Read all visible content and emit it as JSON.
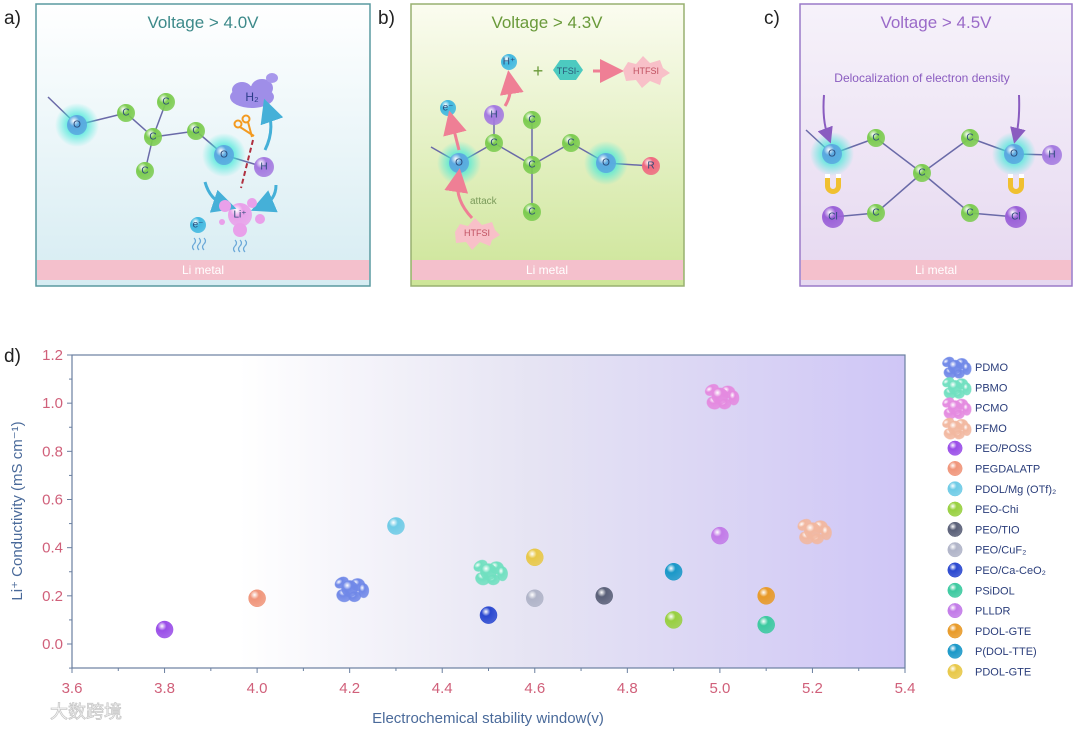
{
  "panels": [
    {
      "label": "a)",
      "title": "Voltage > 4.0V",
      "substrate": "Li metal",
      "color": "#3d8a8a",
      "atoms": [
        {
          "t": "O",
          "k": "O"
        },
        {
          "t": "C",
          "k": "C"
        },
        {
          "t": "C",
          "k": "C"
        },
        {
          "t": "C",
          "k": "C"
        },
        {
          "t": "C",
          "k": "C"
        },
        {
          "t": "C",
          "k": "C"
        },
        {
          "t": "O",
          "k": "O"
        },
        {
          "t": "H",
          "k": "H"
        },
        {
          "t": "Li⁺",
          "k": "Li"
        },
        {
          "t": "e⁻",
          "k": "e"
        }
      ],
      "extras": {
        "gas": "H₂"
      }
    },
    {
      "label": "b)",
      "title": "Voltage > 4.3V",
      "substrate": "Li metal",
      "color": "#6a9a3a",
      "atoms": [
        {
          "t": "O",
          "k": "O"
        },
        {
          "t": "C",
          "k": "C"
        },
        {
          "t": "H",
          "k": "H"
        },
        {
          "t": "C",
          "k": "C"
        },
        {
          "t": "C",
          "k": "C"
        },
        {
          "t": "C",
          "k": "C"
        },
        {
          "t": "C",
          "k": "C"
        },
        {
          "t": "O",
          "k": "O"
        },
        {
          "t": "R",
          "k": "R"
        },
        {
          "t": "e⁻",
          "k": "e"
        },
        {
          "t": "H⁺",
          "k": "e"
        }
      ],
      "extras": {
        "plus": "+",
        "anion": "TFSI-",
        "product": "HTFSI",
        "attack": "attack",
        "attacker": "HTFSI"
      }
    },
    {
      "label": "c)",
      "title": "Voltage > 4.5V",
      "substrate": "Li metal",
      "color": "#9a6ac8",
      "atoms": [
        {
          "t": "O",
          "k": "O"
        },
        {
          "t": "C",
          "k": "C"
        },
        {
          "t": "C",
          "k": "C"
        },
        {
          "t": "C",
          "k": "C"
        },
        {
          "t": "O",
          "k": "O"
        },
        {
          "t": "H",
          "k": "H"
        },
        {
          "t": "Cl",
          "k": "Cl"
        },
        {
          "t": "C",
          "k": "C"
        },
        {
          "t": "C",
          "k": "C"
        },
        {
          "t": "Cl",
          "k": "Cl"
        }
      ],
      "extras": {
        "note": "Delocalization of electron density"
      }
    }
  ],
  "chart_label": "d)",
  "watermark": "大数跨境",
  "chart_data": {
    "type": "scatter",
    "xlabel": "Electrochemical stability window(v)",
    "ylabel": "Li⁺ Conductivity (mS cm⁻¹)",
    "xlim": [
      3.6,
      5.4
    ],
    "ylim": [
      -0.1,
      1.2
    ],
    "xticks": [
      "3.6",
      "3.8",
      "4.0",
      "4.2",
      "4.4",
      "4.6",
      "4.8",
      "5.0",
      "5.2",
      "5.4"
    ],
    "yticks": [
      "0.0",
      "0.2",
      "0.4",
      "0.6",
      "0.8",
      "1.0",
      "1.2"
    ],
    "legend_position": "right-outside",
    "series": [
      {
        "name": "PDMO",
        "x": 4.2,
        "y": 0.23,
        "color": "#7088e8",
        "marker": "cluster"
      },
      {
        "name": "PBMO",
        "x": 4.5,
        "y": 0.3,
        "color": "#70e0c0",
        "marker": "cluster"
      },
      {
        "name": "PCMO",
        "x": 5.0,
        "y": 1.03,
        "color": "#e48ae0",
        "marker": "cluster"
      },
      {
        "name": "PFMO",
        "x": 5.2,
        "y": 0.47,
        "color": "#f2b8a0",
        "marker": "cluster"
      },
      {
        "name": "PEO/POSS",
        "x": 3.8,
        "y": 0.06,
        "color": "#9a4ee8",
        "marker": "sphere"
      },
      {
        "name": "PEGDALATP",
        "x": 4.0,
        "y": 0.19,
        "color": "#f0957a",
        "marker": "sphere"
      },
      {
        "name": "PDOL/Mg (OTf)₂",
        "x": 4.3,
        "y": 0.49,
        "color": "#6ecbe6",
        "marker": "sphere"
      },
      {
        "name": "PEO-Chi",
        "x": 4.9,
        "y": 0.1,
        "color": "#98d040",
        "marker": "sphere"
      },
      {
        "name": "PEO/TIO",
        "x": 4.75,
        "y": 0.2,
        "color": "#5a6078",
        "marker": "sphere"
      },
      {
        "name": "PEO/CuF₂",
        "x": 4.6,
        "y": 0.19,
        "color": "#b0b4c8",
        "marker": "sphere"
      },
      {
        "name": "PEO/Ca-CeO₂",
        "x": 4.5,
        "y": 0.12,
        "color": "#2a48d0",
        "marker": "sphere"
      },
      {
        "name": "PSiDOL",
        "x": 5.1,
        "y": 0.08,
        "color": "#3ccaa0",
        "marker": "sphere"
      },
      {
        "name": "PLLDR",
        "x": 5.0,
        "y": 0.45,
        "color": "#c27ae8",
        "marker": "sphere"
      },
      {
        "name": "PDOL-GTE",
        "x": 5.1,
        "y": 0.2,
        "color": "#e89a28",
        "marker": "sphere"
      },
      {
        "name": "P(DOL-TTE)",
        "x": 4.9,
        "y": 0.3,
        "color": "#1a98c8",
        "marker": "sphere"
      },
      {
        "name": "PDOL-GTE",
        "x": 4.6,
        "y": 0.36,
        "color": "#e8c848",
        "marker": "sphere"
      }
    ]
  }
}
